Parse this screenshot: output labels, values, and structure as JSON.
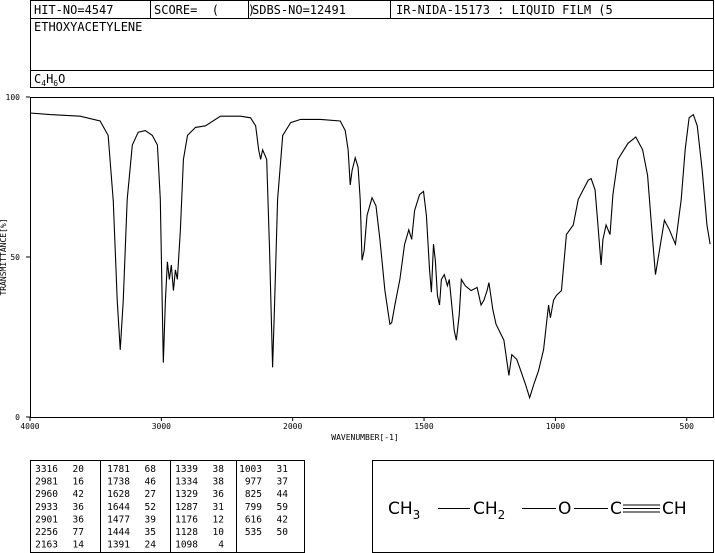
{
  "header": {
    "hit_no": "HIT-NO=4547",
    "score": "SCORE=  (    )",
    "sdbs_no": "SDBS-NO=12491",
    "method": "IR-NIDA-15173 : LIQUID FILM (5",
    "name": "ETHOXYACETYLENE",
    "formula": [
      "C",
      "4",
      "H",
      "6",
      "O"
    ]
  },
  "chart_data": {
    "type": "line",
    "x_label": "WAVENUMBER[-1]",
    "y_label": "TRANSMITTANCE[%]",
    "xlim": [
      4000,
      400
    ],
    "x_scale_break": 2000,
    "xticks": [
      4000,
      3000,
      2000,
      1500,
      1000,
      500
    ],
    "ylim": [
      0,
      100
    ],
    "yticks": [
      0,
      50,
      100
    ],
    "color": "#000000",
    "x": [
      4000,
      3847,
      3618,
      3466,
      3405,
      3366,
      3336,
      3313,
      3290,
      3260,
      3221,
      3176,
      3122,
      3069,
      3030,
      3008,
      2985,
      2969,
      2954,
      2939,
      2924,
      2908,
      2893,
      2878,
      2855,
      2832,
      2801,
      2740,
      2664,
      2550,
      2397,
      2321,
      2282,
      2259,
      2244,
      2229,
      2198,
      2176,
      2153,
      2137,
      2115,
      2076,
      2015,
      1970,
      1894,
      1819,
      1800,
      1789,
      1781,
      1774,
      1762,
      1751,
      1743,
      1736,
      1728,
      1717,
      1698,
      1683,
      1668,
      1649,
      1630,
      1623,
      1611,
      1592,
      1574,
      1558,
      1547,
      1536,
      1517,
      1502,
      1491,
      1479,
      1472,
      1464,
      1457,
      1449,
      1441,
      1434,
      1423,
      1411,
      1404,
      1385,
      1377,
      1366,
      1358,
      1343,
      1321,
      1298,
      1283,
      1272,
      1260,
      1253,
      1238,
      1226,
      1196,
      1177,
      1166,
      1147,
      1132,
      1113,
      1098,
      1083,
      1064,
      1045,
      1026,
      1019,
      1007,
      996,
      977,
      958,
      932,
      913,
      894,
      875,
      864,
      849,
      838,
      826,
      819,
      807,
      792,
      781,
      762,
      724,
      694,
      668,
      649,
      630,
      619,
      604,
      585,
      566,
      543,
      521,
      506,
      491,
      475,
      460,
      441,
      423,
      411
    ],
    "values": [
      95,
      94.5,
      94,
      92.5,
      88,
      67.5,
      36.5,
      21,
      36.5,
      68,
      85,
      89,
      89.5,
      88,
      85,
      68,
      17,
      36.5,
      48.5,
      43,
      47.5,
      39.5,
      46,
      43,
      58.5,
      80.5,
      88,
      90.5,
      91,
      94,
      94,
      93.5,
      91,
      83.5,
      80.5,
      83.5,
      80.5,
      52,
      15.5,
      36.5,
      68,
      88,
      92,
      93,
      93,
      92.5,
      89.5,
      83.5,
      72.5,
      77,
      81,
      78,
      68,
      49,
      52,
      63,
      68.5,
      66,
      55.5,
      39.5,
      29,
      29.5,
      35,
      43,
      54,
      58.5,
      55.5,
      64.5,
      69.5,
      70.5,
      63,
      46,
      39,
      54,
      49,
      38,
      35,
      43,
      44.5,
      41,
      43,
      27,
      24,
      32,
      43,
      41,
      39.5,
      40.5,
      35,
      36.5,
      39.5,
      42,
      33.5,
      29,
      24,
      13,
      19.5,
      18,
      14.5,
      10,
      6,
      10,
      14.5,
      21,
      35,
      31,
      36.5,
      38,
      39.5,
      57,
      60,
      68,
      71,
      74,
      74.5,
      71,
      60,
      47.5,
      55.5,
      60,
      57,
      69.5,
      80.5,
      85.5,
      87.5,
      83.5,
      75.5,
      55.5,
      44.5,
      52,
      61.5,
      58.5,
      54,
      68,
      83.5,
      93.5,
      94.5,
      91,
      77,
      60,
      54
    ]
  },
  "peaks": [
    [
      3316,
      20
    ],
    [
      2981,
      16
    ],
    [
      2960,
      42
    ],
    [
      2933,
      36
    ],
    [
      2901,
      36
    ],
    [
      2256,
      77
    ],
    [
      2163,
      14
    ],
    [
      1781,
      68
    ],
    [
      1738,
      46
    ],
    [
      1628,
      27
    ],
    [
      1644,
      52
    ],
    [
      1477,
      39
    ],
    [
      1444,
      35
    ],
    [
      1391,
      24
    ],
    [
      1339,
      38
    ],
    [
      1334,
      38
    ],
    [
      1329,
      36
    ],
    [
      1287,
      31
    ],
    [
      1176,
      12
    ],
    [
      1128,
      10
    ],
    [
      1098,
      4
    ],
    [
      1003,
      31
    ],
    [
      977,
      37
    ],
    [
      825,
      44
    ],
    [
      799,
      59
    ],
    [
      616,
      42
    ],
    [
      535,
      50
    ]
  ],
  "structure": {
    "groups": [
      "CH",
      "3",
      "CH",
      "2",
      "O",
      "C",
      "CH"
    ]
  }
}
